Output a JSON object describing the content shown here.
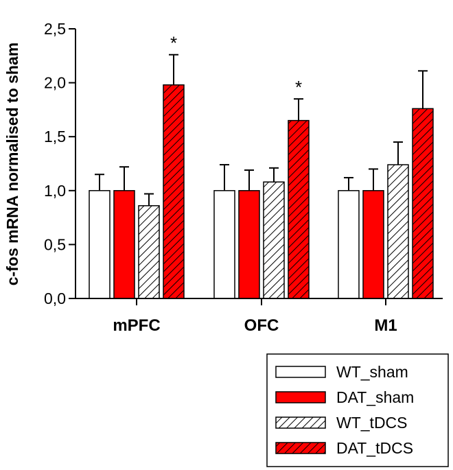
{
  "chart_data": {
    "type": "bar",
    "title": "",
    "xlabel": "",
    "ylabel": "c-fos mRNA normalised to sham",
    "ylim": [
      0,
      2.5
    ],
    "yticks": [
      {
        "value": 0.0,
        "label": "0,0"
      },
      {
        "value": 0.5,
        "label": "0,5"
      },
      {
        "value": 1.0,
        "label": "1,0"
      },
      {
        "value": 1.5,
        "label": "1,5"
      },
      {
        "value": 2.0,
        "label": "2,0"
      },
      {
        "value": 2.5,
        "label": "2,5"
      }
    ],
    "categories": [
      "mPFC",
      "OFC",
      "M1"
    ],
    "series": [
      {
        "name": "WT_sham",
        "fill": "#ffffff",
        "pattern": "none",
        "values": [
          1.0,
          1.0,
          1.0
        ],
        "error": [
          0.15,
          0.24,
          0.12
        ]
      },
      {
        "name": "DAT_sham",
        "fill": "#ff0000",
        "pattern": "none",
        "values": [
          1.0,
          1.0,
          1.0
        ],
        "error": [
          0.22,
          0.19,
          0.2
        ]
      },
      {
        "name": "WT_tDCS",
        "fill": "#ffffff",
        "pattern": "hatch",
        "values": [
          0.86,
          1.08,
          1.24
        ],
        "error": [
          0.11,
          0.13,
          0.21
        ]
      },
      {
        "name": "DAT_tDCS",
        "fill": "#ff0000",
        "pattern": "hatch",
        "values": [
          1.98,
          1.65,
          1.76
        ],
        "error": [
          0.28,
          0.2,
          0.35
        ]
      }
    ],
    "annotations": [
      {
        "category": "mPFC",
        "series": "DAT_tDCS",
        "text": "*"
      },
      {
        "category": "OFC",
        "series": "DAT_tDCS",
        "text": "*"
      }
    ],
    "legend": {
      "position": "bottom-right"
    },
    "grid": false
  }
}
